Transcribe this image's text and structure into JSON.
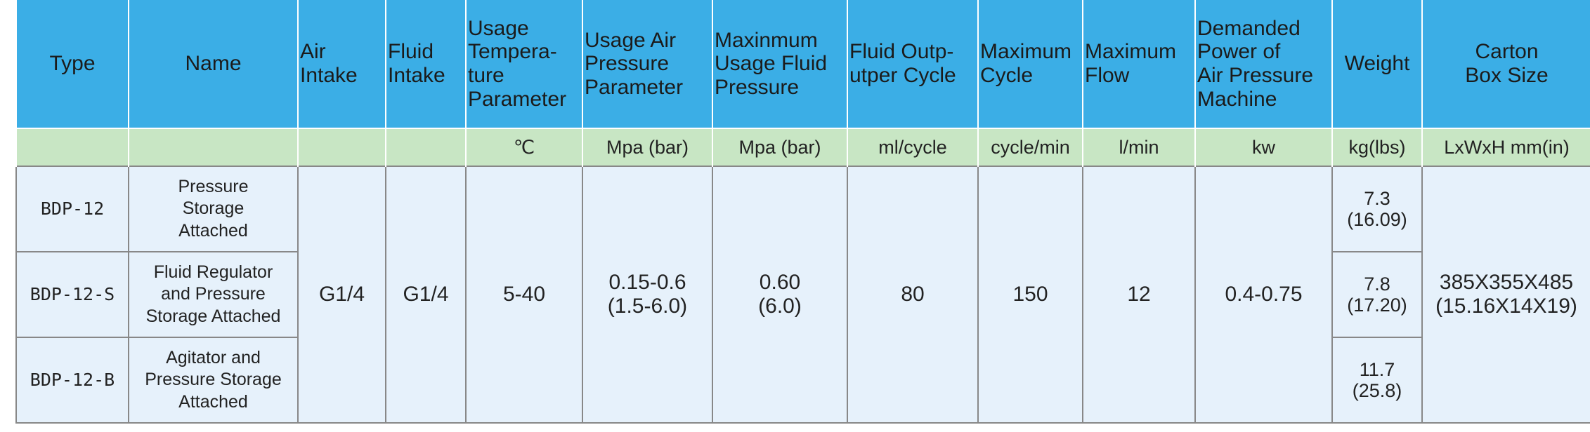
{
  "header": {
    "columns": [
      "Type",
      "Name",
      "Air\nIntake",
      "Fluid\nIntake",
      "Usage\nTempera-\nture\nParameter",
      "Usage Air\nPressure\nParameter",
      "Maxinmum\nUsage Fluid\nPressure",
      "Fluid Outp-\nutper Cycle",
      "Maximum\nCycle",
      "Maximum\nFlow",
      "Demanded\nPower of\nAir Pressure\nMachine",
      "Weight",
      "Carton\nBox Size"
    ]
  },
  "units": [
    null,
    null,
    null,
    null,
    "℃",
    "Mpa (bar)",
    "Mpa (bar)",
    "ml/cycle",
    "cycle/min",
    "l/min",
    "kw",
    "kg(lbs)",
    "LxWxH  mm(in)"
  ],
  "shared": {
    "air_intake": "G1/4",
    "fluid_intake": "G1/4",
    "temperature": "5-40",
    "air_pressure": "0.15-0.6\n(1.5-6.0)",
    "fluid_pressure": "0.60\n(6.0)",
    "output": "80",
    "cycle": "150",
    "flow": "12",
    "power": "0.4-0.75",
    "carton": "385X355X485\n(15.16X14X19)"
  },
  "rows": [
    {
      "type": "BDP-12",
      "name": "Pressure\nStorage\nAttached",
      "weight": "7.3\n(16.09)"
    },
    {
      "type": "BDP-12-S",
      "name": "Fluid Regulator\nand Pressure\nStorage Attached",
      "weight": "7.8\n(17.20)"
    },
    {
      "type": "BDP-12-B",
      "name": "Agitator and\nPressure Storage\nAttached",
      "weight": "11.7\n(25.8)"
    }
  ]
}
